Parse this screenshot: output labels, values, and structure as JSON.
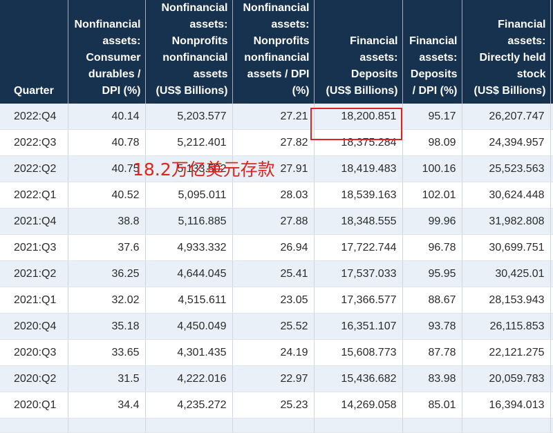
{
  "headers": [
    "Quarter",
    "Nonfinancial\nassets:\nConsumer\ndurables /\nDPI (%)",
    "Nonfinancial\nassets:\nNonprofits\nnonfinancial\nassets\n(US$ Billions)",
    "Nonfinancial\nassets:\nNonprofits\nnonfinancial\nassets / DPI\n(%)",
    "Financial\nassets:\nDeposits\n(US$ Billions)",
    "Financial\nassets:\nDeposits\n/ DPI (%)",
    "Financial\nassets:\nDirectly held\nstock\n(US$ Billions)"
  ],
  "rows": [
    [
      "2022:Q4",
      "40.14",
      "5,203.577",
      "27.21",
      "18,200.851",
      "95.17",
      "26,207.747"
    ],
    [
      "2022:Q3",
      "40.78",
      "5,212.401",
      "27.82",
      "18,375.284",
      "98.09",
      "24,394.957"
    ],
    [
      "2022:Q2",
      "40.75",
      "5,133.502",
      "27.91",
      "18,419.483",
      "100.16",
      "25,523.563"
    ],
    [
      "2022:Q1",
      "40.52",
      "5,095.011",
      "28.03",
      "18,539.163",
      "102.01",
      "30,624.448"
    ],
    [
      "2021:Q4",
      "38.8",
      "5,116.885",
      "27.88",
      "18,348.555",
      "99.96",
      "31,982.808"
    ],
    [
      "2021:Q3",
      "37.6",
      "4,933.332",
      "26.94",
      "17,722.744",
      "96.78",
      "30,699.751"
    ],
    [
      "2021:Q2",
      "36.25",
      "4,644.045",
      "25.41",
      "17,537.033",
      "95.95",
      "30,425.01"
    ],
    [
      "2021:Q1",
      "32.02",
      "4,515.611",
      "23.05",
      "17,366.577",
      "88.67",
      "28,153.943"
    ],
    [
      "2020:Q4",
      "35.18",
      "4,450.049",
      "25.52",
      "16,351.107",
      "93.78",
      "26,115.853"
    ],
    [
      "2020:Q3",
      "33.65",
      "4,301.435",
      "24.19",
      "15,608.773",
      "87.78",
      "22,121.275"
    ],
    [
      "2020:Q2",
      "31.5",
      "4,222.016",
      "22.97",
      "15,436.682",
      "83.98",
      "20,059.783"
    ],
    [
      "2020:Q1",
      "34.4",
      "4,235.272",
      "25.23",
      "14,269.058",
      "85.01",
      "16,394.013"
    ]
  ],
  "annotation": "18.2万亿美元存款",
  "colors": {
    "header_bg": "#17324f",
    "alt_row_bg": "#e9f0f8",
    "highlight": "#e0241b"
  }
}
